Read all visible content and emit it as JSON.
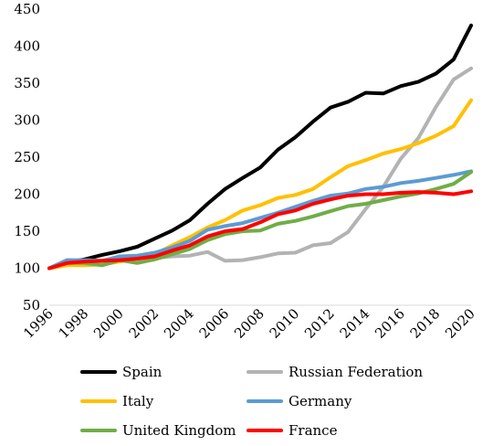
{
  "chart_data": {
    "type": "line",
    "x": [
      1996,
      1997,
      1998,
      1999,
      2000,
      2001,
      2002,
      2003,
      2004,
      2005,
      2006,
      2007,
      2008,
      2009,
      2010,
      2011,
      2012,
      2013,
      2014,
      2015,
      2016,
      2017,
      2018,
      2019,
      2020
    ],
    "xticks": [
      "1996",
      "1998",
      "2000",
      "2002",
      "2004",
      "2006",
      "2008",
      "2010",
      "2012",
      "2014",
      "2016",
      "2018",
      "2020"
    ],
    "ylim": [
      50,
      450
    ],
    "yticks": [
      "50",
      "100",
      "150",
      "200",
      "250",
      "300",
      "350",
      "400",
      "450"
    ],
    "grid": false,
    "legend_position": "bottom",
    "series": [
      {
        "name": "Spain",
        "color": "#000000",
        "values": [
          100,
          108,
          112,
          118,
          123,
          129,
          140,
          151,
          165,
          187,
          207,
          222,
          236,
          260,
          277,
          298,
          317,
          325,
          337,
          336,
          346,
          352,
          363,
          382,
          428
        ]
      },
      {
        "name": "Russian Federation",
        "color": "#b3b3b3",
        "values": [
          100,
          105,
          108,
          107,
          112,
          110,
          114,
          116,
          117,
          122,
          110,
          111,
          115,
          120,
          121,
          131,
          134,
          149,
          180,
          210,
          248,
          276,
          318,
          355,
          370
        ]
      },
      {
        "name": "Italy",
        "color": "#ffc000",
        "values": [
          100,
          104,
          104,
          105,
          109,
          113,
          119,
          131,
          142,
          155,
          165,
          178,
          185,
          195,
          199,
          207,
          223,
          238,
          246,
          255,
          261,
          269,
          279,
          292,
          327
        ]
      },
      {
        "name": "Germany",
        "color": "#5b9bd5",
        "values": [
          100,
          111,
          111,
          110,
          116,
          117,
          121,
          128,
          137,
          152,
          157,
          161,
          168,
          175,
          183,
          191,
          198,
          201,
          207,
          210,
          215,
          218,
          222,
          226,
          231
        ]
      },
      {
        "name": "United Kingdom",
        "color": "#70ad47",
        "values": [
          100,
          107,
          107,
          104,
          111,
          107,
          112,
          119,
          126,
          138,
          146,
          150,
          151,
          160,
          164,
          170,
          177,
          184,
          187,
          192,
          197,
          201,
          207,
          214,
          230
        ]
      },
      {
        "name": "France",
        "color": "#ff0000",
        "values": [
          100,
          107,
          109,
          110,
          111,
          113,
          116,
          124,
          131,
          143,
          150,
          153,
          162,
          173,
          178,
          187,
          193,
          198,
          200,
          200,
          202,
          203,
          202,
          200,
          204
        ]
      }
    ]
  }
}
